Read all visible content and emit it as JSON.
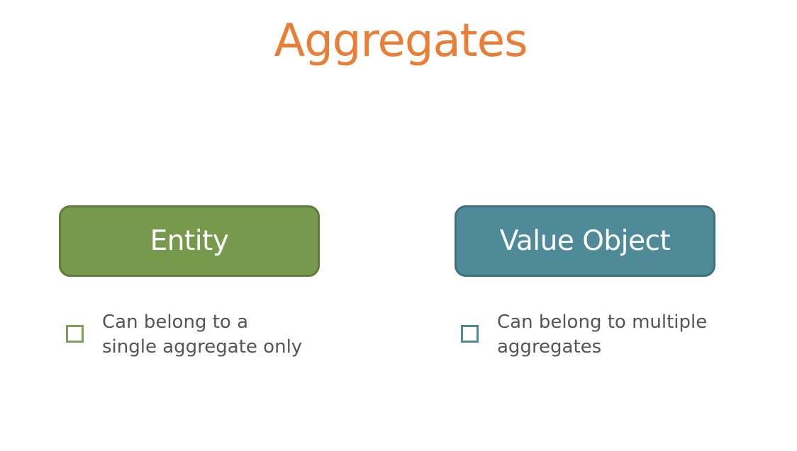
{
  "title": "Aggregates",
  "colors": {
    "title": "#EB7D34",
    "entity_fill": "#76994C",
    "entity_border": "#5C7E3A",
    "value_fill": "#4E8A97",
    "value_border": "#3D727E",
    "entity_checkbox": "#7FA05A",
    "value_checkbox": "#4E8A97"
  },
  "entity": {
    "label": "Entity",
    "note_lines": [
      "Can belong to a",
      "single aggregate only"
    ],
    "checkbox_icon": "empty-checkbox-square"
  },
  "value_object": {
    "label": "Value Object",
    "note_lines": [
      "Can belong to multiple",
      "aggregates"
    ],
    "checkbox_icon": "empty-checkbox-square"
  }
}
